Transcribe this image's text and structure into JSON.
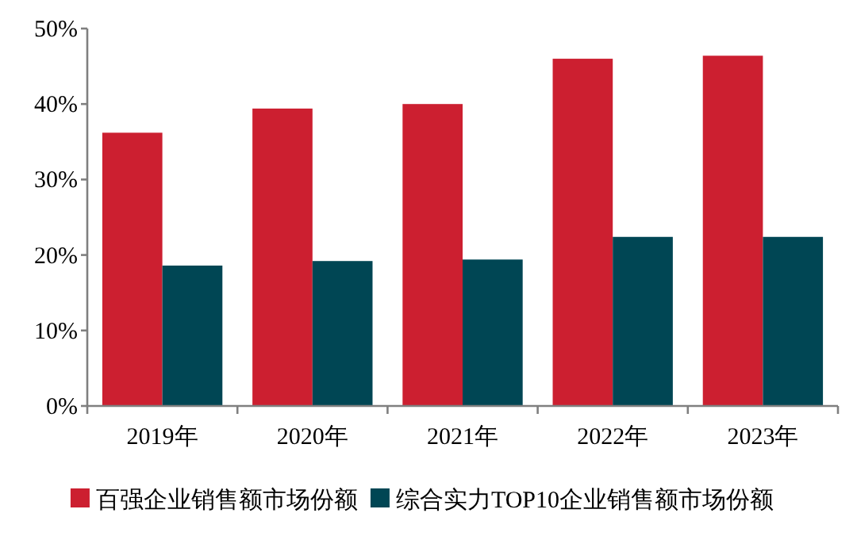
{
  "chart_data": {
    "type": "bar",
    "categories": [
      "2019年",
      "2020年",
      "2021年",
      "2022年",
      "2023年"
    ],
    "series": [
      {
        "name": "百强企业销售额市场份额",
        "color": "#cc1f30",
        "values": [
          36.2,
          39.4,
          40.0,
          46.0,
          46.4
        ]
      },
      {
        "name": "综合实力TOP10企业销售额市场份额",
        "color": "#004654",
        "values": [
          18.6,
          19.2,
          19.4,
          22.4,
          22.4
        ]
      }
    ],
    "ylim": [
      0,
      50
    ],
    "yticks": [
      {
        "value": 0,
        "label": "0%"
      },
      {
        "value": 10,
        "label": "10%"
      },
      {
        "value": 20,
        "label": "20%"
      },
      {
        "value": 30,
        "label": "30%"
      },
      {
        "value": 40,
        "label": "40%"
      },
      {
        "value": 50,
        "label": "50%"
      }
    ],
    "grid": false,
    "legend": "bottom"
  }
}
